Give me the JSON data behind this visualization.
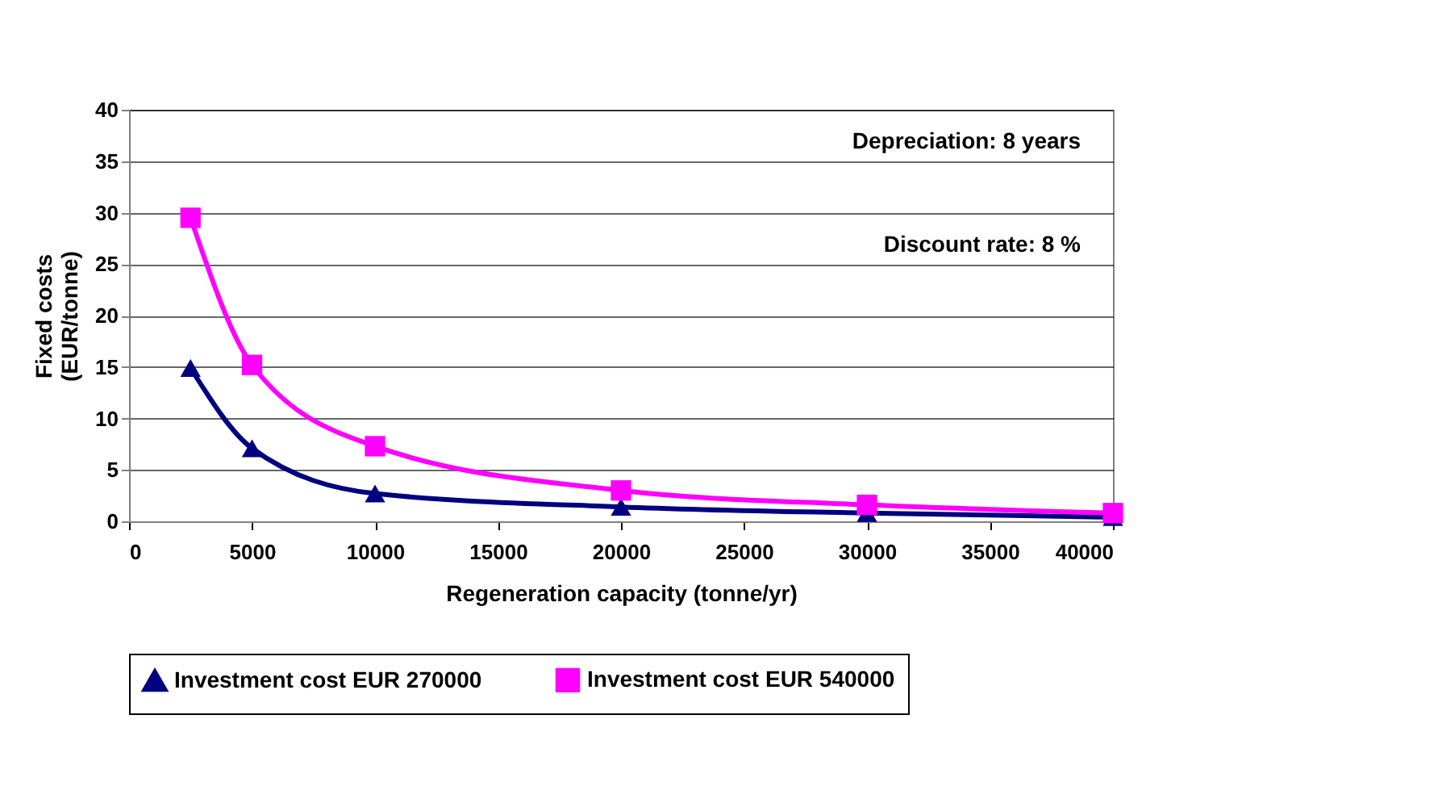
{
  "chart_data": {
    "type": "line",
    "xlabel": "Regeneration capacity (tonne/yr)",
    "ylabel": "Fixed costs (EUR/tonne)",
    "x": [
      2500,
      5000,
      10000,
      20000,
      30000,
      40000
    ],
    "series": [
      {
        "name": "Investment cost EUR 270000",
        "color": "#000080",
        "marker": "triangle",
        "values": [
          14.9,
          7.1,
          2.7,
          1.4,
          0.8,
          0.4
        ]
      },
      {
        "name": "Investment cost EUR 540000",
        "color": "#ff00ff",
        "marker": "square",
        "values": [
          29.5,
          15.2,
          7.3,
          3.0,
          1.6,
          0.8
        ]
      }
    ],
    "xlim": [
      0,
      40000
    ],
    "xticks": [
      0,
      5000,
      10000,
      15000,
      20000,
      25000,
      30000,
      35000,
      40000
    ],
    "ylim": [
      0,
      40
    ],
    "yticks": [
      0,
      5,
      10,
      15,
      20,
      25,
      30,
      35,
      40
    ],
    "grid": "y",
    "legend": "bottom",
    "annotations": [
      "Depreciation: 8 years",
      "Discount rate: 8 %"
    ]
  }
}
